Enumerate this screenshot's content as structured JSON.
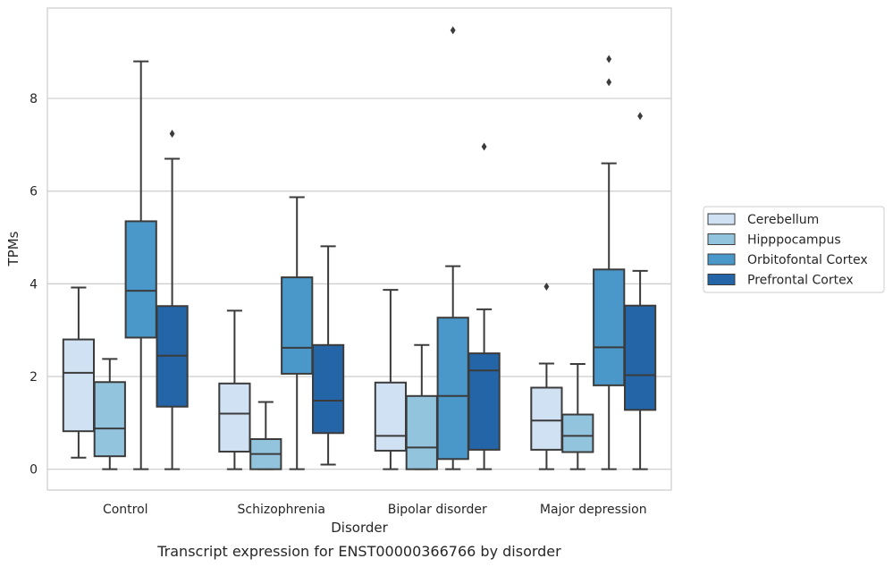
{
  "chart_data": {
    "type": "box",
    "xlabel": "Disorder",
    "ylabel": "TPMs",
    "caption": "Transcript expression for ENST00000366766 by disorder",
    "ylim": [
      -0.45,
      9.95
    ],
    "yticks": [
      0,
      2,
      4,
      6,
      8
    ],
    "grid": true,
    "legend_position": "right",
    "categories": [
      "Control",
      "Schizophrenia",
      "Bipolar disorder",
      "Major depression"
    ],
    "series": [
      {
        "name": "Cerebellum",
        "color": "#cfe1f2",
        "boxes": [
          {
            "whislo": 0.25,
            "q1": 0.82,
            "med": 2.08,
            "q3": 2.8,
            "whishi": 3.92,
            "fliers": []
          },
          {
            "whislo": 0.0,
            "q1": 0.38,
            "med": 1.2,
            "q3": 1.85,
            "whishi": 3.42,
            "fliers": []
          },
          {
            "whislo": 0.0,
            "q1": 0.4,
            "med": 0.72,
            "q3": 1.87,
            "whishi": 3.87,
            "fliers": []
          },
          {
            "whislo": 0.0,
            "q1": 0.42,
            "med": 1.05,
            "q3": 1.76,
            "whishi": 2.28,
            "fliers": [
              3.94
            ]
          }
        ]
      },
      {
        "name": "Hipppocampus",
        "color": "#93c4de",
        "boxes": [
          {
            "whislo": 0.0,
            "q1": 0.28,
            "med": 0.88,
            "q3": 1.88,
            "whishi": 2.38,
            "fliers": []
          },
          {
            "whislo": 0.0,
            "q1": 0.0,
            "med": 0.33,
            "q3": 0.65,
            "whishi": 1.45,
            "fliers": []
          },
          {
            "whislo": 0.0,
            "q1": 0.0,
            "med": 0.47,
            "q3": 1.58,
            "whishi": 2.68,
            "fliers": []
          },
          {
            "whislo": 0.0,
            "q1": 0.37,
            "med": 0.72,
            "q3": 1.18,
            "whishi": 2.27,
            "fliers": []
          }
        ]
      },
      {
        "name": "Orbitofontal Cortex",
        "color": "#4a98c9",
        "boxes": [
          {
            "whislo": 0.0,
            "q1": 2.84,
            "med": 3.85,
            "q3": 5.35,
            "whishi": 8.8,
            "fliers": []
          },
          {
            "whislo": 0.0,
            "q1": 2.06,
            "med": 2.62,
            "q3": 4.14,
            "whishi": 5.87,
            "fliers": []
          },
          {
            "whislo": 0.0,
            "q1": 0.22,
            "med": 1.58,
            "q3": 3.27,
            "whishi": 4.38,
            "fliers": [
              9.47
            ]
          },
          {
            "whislo": 0.0,
            "q1": 1.81,
            "med": 2.63,
            "q3": 4.31,
            "whishi": 6.6,
            "fliers": [
              8.35,
              8.85
            ]
          }
        ]
      },
      {
        "name": "Prefrontal Cortex",
        "color": "#2465a8",
        "boxes": [
          {
            "whislo": 0.0,
            "q1": 1.35,
            "med": 2.45,
            "q3": 3.52,
            "whishi": 6.7,
            "fliers": [
              7.24
            ]
          },
          {
            "whislo": 0.1,
            "q1": 0.78,
            "med": 1.48,
            "q3": 2.68,
            "whishi": 4.81,
            "fliers": []
          },
          {
            "whislo": 0.0,
            "q1": 0.42,
            "med": 2.13,
            "q3": 2.5,
            "whishi": 3.45,
            "fliers": [
              6.96
            ]
          },
          {
            "whislo": 0.0,
            "q1": 1.28,
            "med": 2.03,
            "q3": 3.53,
            "whishi": 4.28,
            "fliers": [
              7.62
            ]
          }
        ]
      }
    ]
  }
}
